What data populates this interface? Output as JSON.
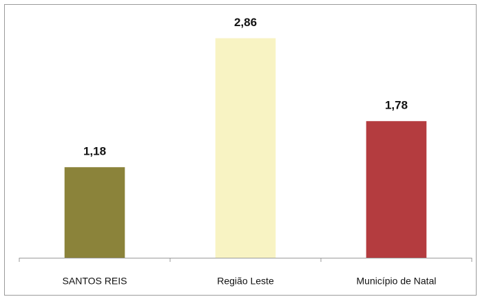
{
  "chart_data": {
    "type": "bar",
    "categories": [
      "SANTOS REIS",
      "Região Leste",
      "Município de Natal"
    ],
    "values": [
      1.18,
      2.86,
      1.78
    ],
    "value_labels": [
      "1,18",
      "2,86",
      "1,78"
    ],
    "colors": [
      "#8b833a",
      "#f8f3c3",
      "#b43c3f"
    ],
    "ylim": [
      0,
      3
    ]
  }
}
